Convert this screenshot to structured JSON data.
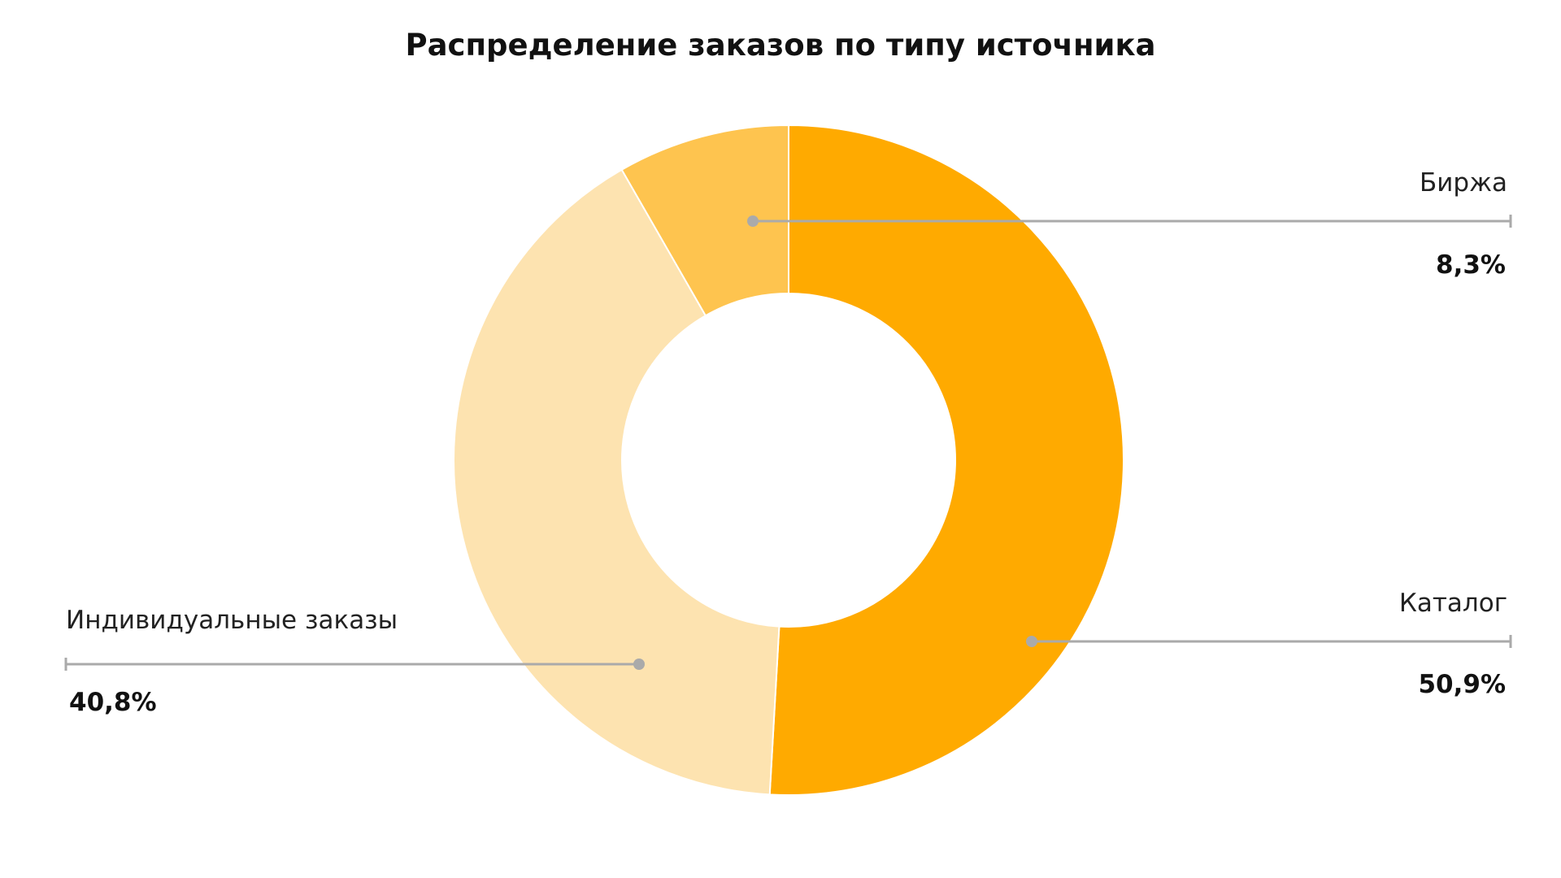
{
  "chart_data": {
    "type": "pie",
    "variant": "donut",
    "title": "Распределение заказов по типу источника",
    "start_angle_deg": 0,
    "direction": "clockwise",
    "slices": [
      {
        "name": "Каталог",
        "value": 50.9,
        "label_value": "50,9%",
        "color": "#FFAA00"
      },
      {
        "name": "Индивидуальные заказы",
        "value": 40.8,
        "label_value": "40,8%",
        "color": "#FDE3B0"
      },
      {
        "name": "Биржа",
        "value": 8.3,
        "label_value": "8,3%",
        "color": "#FEC44F"
      }
    ],
    "leader_line_color": "#AAAAAA",
    "legend": "none",
    "grid": false
  }
}
